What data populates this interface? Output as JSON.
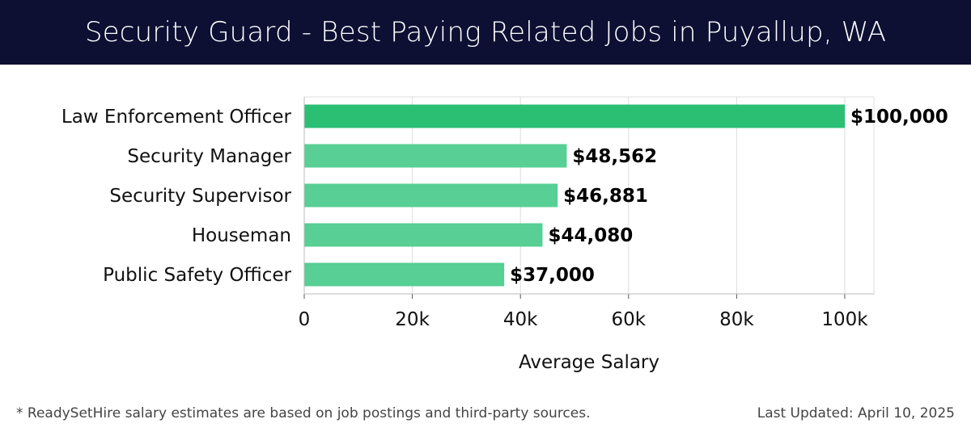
{
  "header": {
    "title": "Security Guard - Best Paying Related Jobs in Puyallup, WA"
  },
  "footer": {
    "note": "* ReadySetHire salary estimates are based on job postings and third-party sources.",
    "updated": "Last Updated: April 10, 2025"
  },
  "colors": {
    "header_bg": "#0d0f33",
    "bar_top": "#2bbf74",
    "bar": "#57cf95",
    "grid": "#dddddd"
  },
  "chart_data": {
    "type": "bar",
    "orientation": "horizontal",
    "categories": [
      "Law Enforcement Officer",
      "Security Manager",
      "Security Supervisor",
      "Houseman",
      "Public Safety Officer"
    ],
    "values": [
      100000,
      48562,
      46881,
      44080,
      37000
    ],
    "value_labels": [
      "$100,000",
      "$48,562",
      "$46,881",
      "$44,080",
      "$37,000"
    ],
    "xlabel": "Average Salary",
    "xlim": [
      0,
      105000
    ],
    "xticks": [
      0,
      20000,
      40000,
      60000,
      80000,
      100000
    ],
    "xtick_labels": [
      "0",
      "20k",
      "40k",
      "60k",
      "80k",
      "100k"
    ],
    "grid": true
  }
}
